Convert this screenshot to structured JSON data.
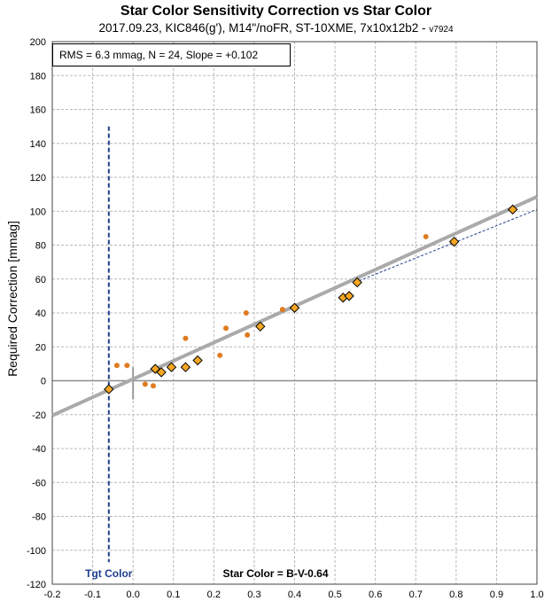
{
  "chart_data": {
    "type": "scatter",
    "title": "Star Color Sensitivity Correction vs Star Color",
    "subtitle": "2017.09.23, KIC846(g'), M14\"/noFR, ST-10XME, 7x10x12b2 - ",
    "subtitle_version": "v7924",
    "stats_text": "RMS = 6.3 mmag, N = 24, Slope = +0.102",
    "ylabel": "Required Correction [mmag]",
    "xlabel": "Star Color = B-V-0.64",
    "target_label": "Tgt Color",
    "xlim": [
      -0.2,
      1.0
    ],
    "ylim": [
      -120,
      200
    ],
    "x_ticks": [
      "-0.2",
      "-0.1",
      "0.0",
      "0.1",
      "0.2",
      "0.3",
      "0.4",
      "0.5",
      "0.6",
      "0.7",
      "0.8",
      "0.9",
      "1.0"
    ],
    "y_ticks": [
      "200",
      "180",
      "160",
      "140",
      "120",
      "100",
      "80",
      "60",
      "40",
      "20",
      "0",
      "-20",
      "-40",
      "-60",
      "-80",
      "-100",
      "-120"
    ],
    "grid": true,
    "target_x": -0.06,
    "series": [
      {
        "marker": "diamond",
        "color": "#f5a623",
        "points": [
          [
            -0.06,
            -5
          ],
          [
            0.055,
            7
          ],
          [
            0.07,
            5
          ],
          [
            0.095,
            8
          ],
          [
            0.13,
            8
          ],
          [
            0.16,
            12
          ],
          [
            0.315,
            32
          ],
          [
            0.4,
            43
          ],
          [
            0.52,
            49
          ],
          [
            0.535,
            50
          ],
          [
            0.555,
            58
          ],
          [
            0.795,
            82
          ],
          [
            0.94,
            101
          ]
        ]
      },
      {
        "marker": "dot",
        "color": "#e07b20",
        "points": [
          [
            -0.04,
            9
          ],
          [
            -0.015,
            9
          ],
          [
            0.03,
            -2
          ],
          [
            0.05,
            -3
          ],
          [
            0.13,
            25
          ],
          [
            0.215,
            15
          ],
          [
            0.23,
            31
          ],
          [
            0.28,
            40
          ],
          [
            0.283,
            27
          ],
          [
            0.37,
            42
          ],
          [
            0.725,
            85
          ]
        ]
      }
    ],
    "fit_line": {
      "x": [
        -0.2,
        1.0
      ],
      "y": [
        -20.5,
        108.5
      ],
      "color": "#aaaaaa"
    },
    "fit_dashed": {
      "x": [
        0.56,
        1.0
      ],
      "y": [
        59,
        101
      ],
      "color": "#1f3e8c"
    }
  }
}
